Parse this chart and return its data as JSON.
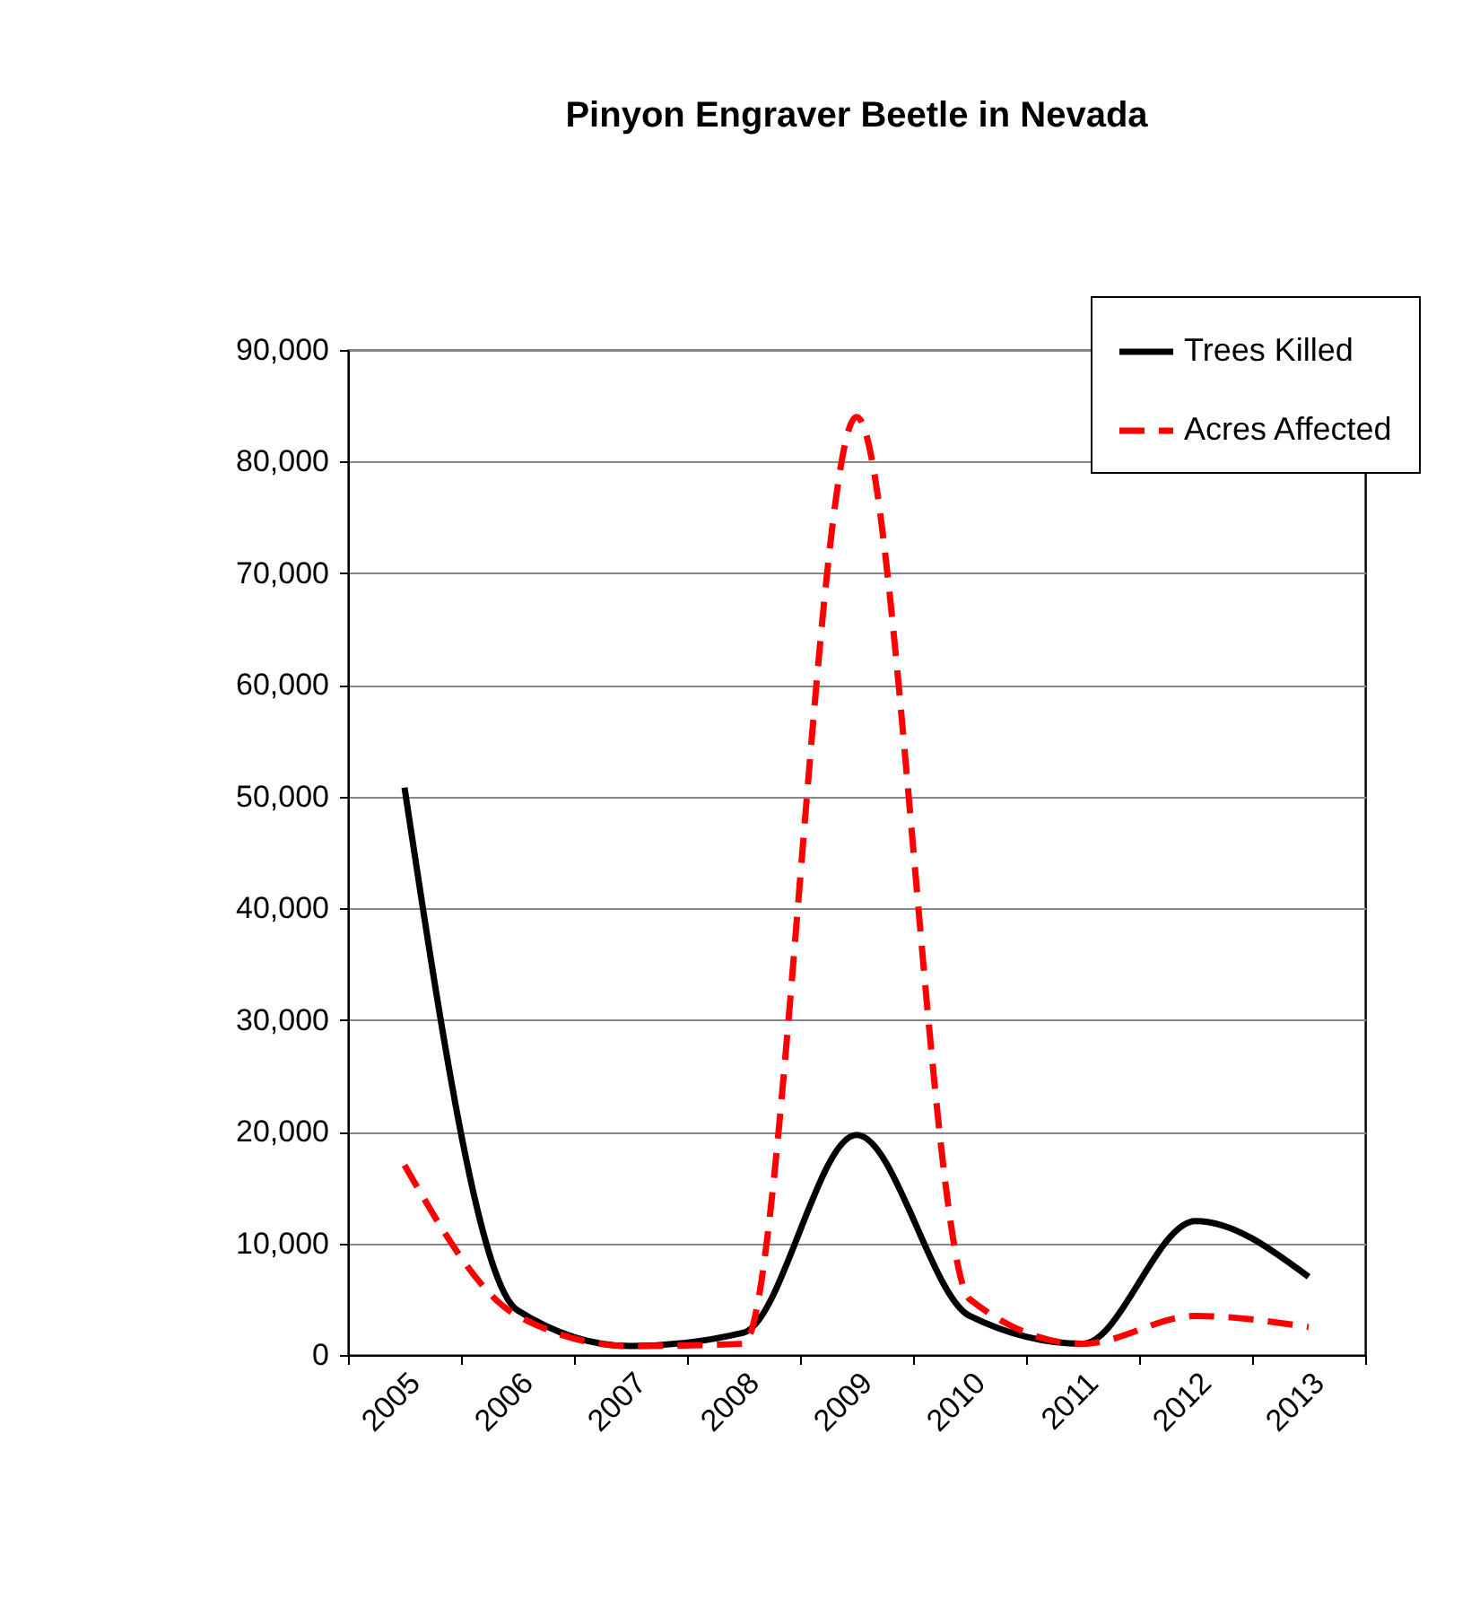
{
  "chart_data": {
    "type": "line",
    "title": "Pinyon Engraver Beetle in Nevada",
    "categories": [
      "2005",
      "2006",
      "2007",
      "2008",
      "2009",
      "2010",
      "2011",
      "2012",
      "2013"
    ],
    "series": [
      {
        "name": "Trees Killed",
        "color": "#000000",
        "line_style": "solid",
        "values": [
          50800,
          4000,
          800,
          2000,
          19700,
          3500,
          1000,
          12000,
          7000
        ]
      },
      {
        "name": "Acres Affected",
        "color": "#ff0000",
        "line_style": "dashed",
        "values": [
          17000,
          3500,
          800,
          1000,
          84000,
          5000,
          1000,
          3500,
          2500
        ]
      }
    ],
    "ylim": [
      0,
      90000
    ],
    "yticks": [
      0,
      {
        "value": 10000,
        "label": "10,000"
      },
      {
        "value": 20000,
        "label": "20,000"
      },
      {
        "value": 30000,
        "label": "30,000"
      },
      {
        "value": 40000,
        "label": "40,000"
      },
      {
        "value": 50000,
        "label": "50,000"
      },
      {
        "value": 60000,
        "label": "60,000"
      },
      {
        "value": 70000,
        "label": "70,000"
      },
      {
        "value": 80000,
        "label": "80,000"
      },
      {
        "value": 90000,
        "label": "90,000"
      }
    ],
    "grid": "y",
    "legend": "top right",
    "marker": "none"
  }
}
